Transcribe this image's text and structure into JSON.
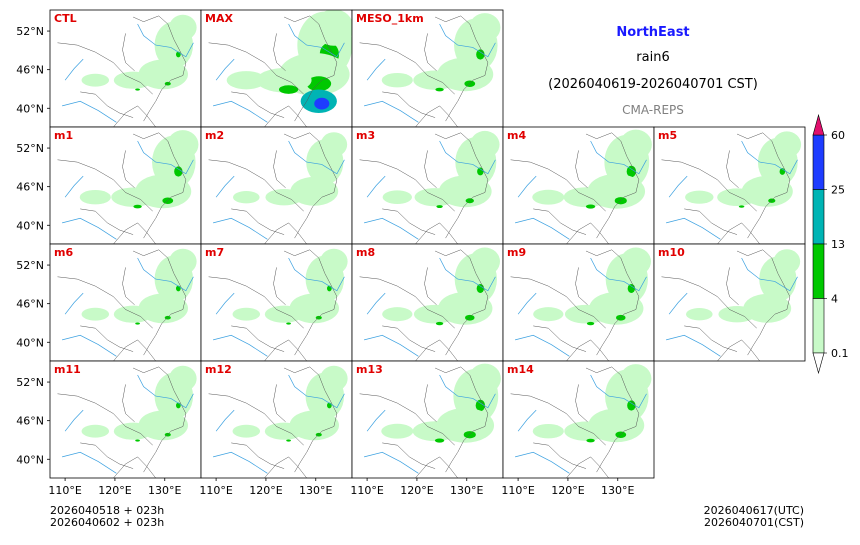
{
  "header": {
    "region": "NorthEast",
    "variable": "rain6",
    "period": "(2026040619-2026040701 CST)",
    "model": "CMA-REPS"
  },
  "panels": [
    {
      "label": "CTL",
      "intensity": 0.35
    },
    {
      "label": "MAX",
      "intensity": 1.0
    },
    {
      "label": "MESO_1km",
      "intensity": 0.55
    },
    {
      "label": "m1",
      "intensity": 0.55
    },
    {
      "label": "m2",
      "intensity": 0.3
    },
    {
      "label": "m3",
      "intensity": 0.45
    },
    {
      "label": "m4",
      "intensity": 0.6
    },
    {
      "label": "m5",
      "intensity": 0.4
    },
    {
      "label": "m6",
      "intensity": 0.35
    },
    {
      "label": "m7",
      "intensity": 0.35
    },
    {
      "label": "m8",
      "intensity": 0.5
    },
    {
      "label": "m9",
      "intensity": 0.5
    },
    {
      "label": "m10",
      "intensity": 0.3
    },
    {
      "label": "m11",
      "intensity": 0.35
    },
    {
      "label": "m12",
      "intensity": 0.35
    },
    {
      "label": "m13",
      "intensity": 0.6
    },
    {
      "label": "m14",
      "intensity": 0.55
    }
  ],
  "axes": {
    "lat_ticks": [
      "52°N",
      "46°N",
      "40°N"
    ],
    "lon_ticks": [
      "110°E",
      "120°E",
      "130°E"
    ]
  },
  "colorbar": {
    "levels": [
      "0.1",
      "4",
      "13",
      "25",
      "60"
    ],
    "colors": [
      "#c8fac8",
      "#00c800",
      "#00b4b4",
      "#1e3cff",
      "#e0106e"
    ]
  },
  "footer": {
    "left_line1": "2026040518  +  023h",
    "left_line2": "2026040602  +  023h",
    "right_line1": "2026040617(UTC)",
    "right_line2": "2026040701(CST)"
  }
}
